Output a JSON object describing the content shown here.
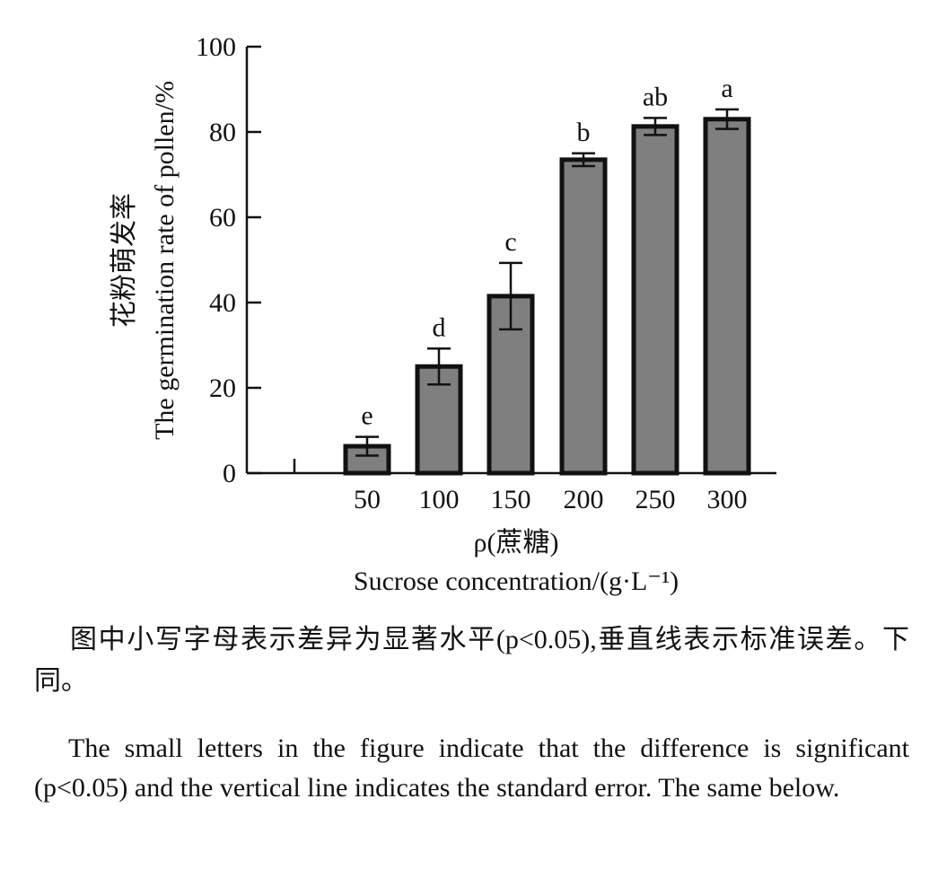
{
  "chart_data": {
    "type": "bar",
    "categories": [
      "50",
      "100",
      "150",
      "200",
      "250",
      "300"
    ],
    "values": [
      6.3,
      25.0,
      41.5,
      73.5,
      81.3,
      83.0
    ],
    "errors": [
      2.2,
      4.2,
      7.8,
      1.5,
      2.0,
      2.3
    ],
    "significance_letters": [
      "e",
      "d",
      "c",
      "b",
      "ab",
      "a"
    ],
    "ylim": [
      0,
      100
    ],
    "yticks": [
      0,
      20,
      40,
      60,
      80,
      100
    ],
    "ylabel_zh": "花粉萌发率",
    "ylabel_en": "The germination rate of pollen/%",
    "xlabel_zh": "ρ(蔗糖)",
    "xlabel_en": "Sucrose concentration/(g·L⁻¹)",
    "bar_color": "#7f7f7f",
    "edge_color": "#111111",
    "grid": false,
    "legend": "none"
  },
  "caption": {
    "zh": "图中小写字母表示差异为显著水平(p<0.05),垂直线表示标准误差。下同。",
    "en": "The small letters in the figure indicate that the difference is significant (p<0.05) and the vertical line indicates the standard error. The same below."
  }
}
